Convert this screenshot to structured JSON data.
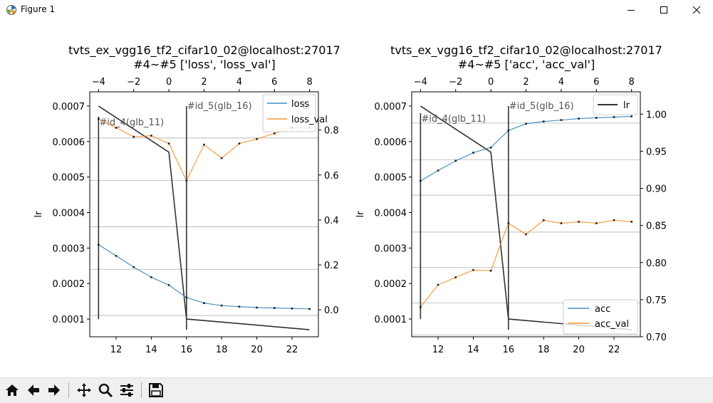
{
  "window": {
    "title": "Figure 1",
    "icons": [
      "matplotlib-icon",
      "minimize-icon",
      "maximize-icon",
      "close-icon"
    ]
  },
  "toolbar": {
    "buttons": [
      "home-icon",
      "back-icon",
      "forward-icon",
      "pan-icon",
      "zoom-icon",
      "configure-icon",
      "save-icon"
    ]
  },
  "colors": {
    "series1": "#1f77b4",
    "series2": "#ff7f0e",
    "lr": "#000000",
    "grid": "#b0b0b0"
  },
  "chart_data": [
    {
      "type": "line",
      "title": "tvts_ex_vgg16_tf2_cifar10_02@localhost:27017",
      "subtitle": "#4~#5 ['loss', 'loss_val']",
      "xlabel": "",
      "ylabel": "lr",
      "xlim": [
        10.5,
        23.5
      ],
      "ylim_left": [
        5e-05,
        0.00074
      ],
      "ylim_right": [
        -0.12,
        0.97
      ],
      "xlim_top": [
        -4.5,
        8.5
      ],
      "x_ticks": [
        12,
        14,
        16,
        18,
        20,
        22
      ],
      "x_tick_labels": [
        "12",
        "14",
        "16",
        "18",
        "20",
        "22"
      ],
      "top_ticks": [
        -4,
        -2,
        0,
        2,
        4,
        6,
        8
      ],
      "top_tick_labels": [
        "−4",
        "−2",
        "0",
        "2",
        "4",
        "6",
        "8"
      ],
      "left_ticks": [
        0.0001,
        0.0002,
        0.0003,
        0.0004,
        0.0005,
        0.0006,
        0.0007
      ],
      "left_tick_labels": [
        "0.0001",
        "0.0002",
        "0.0003",
        "0.0004",
        "0.0005",
        "0.0006",
        "0.0007"
      ],
      "right_ticks": [
        0.0,
        0.2,
        0.4,
        0.6,
        0.8
      ],
      "right_tick_labels": [
        "0.0",
        "0.2",
        "0.4",
        "0.6",
        "0.8"
      ],
      "grid_y": [
        0.00011,
        0.00024,
        0.00036,
        0.00049,
        0.00061
      ],
      "lr_series": {
        "name": "lr",
        "x": [
          11,
          15,
          16,
          23
        ],
        "y": [
          0.0007,
          0.00057,
          0.0001,
          7e-05
        ]
      },
      "series": [
        {
          "name": "loss",
          "color": "#1f77b4",
          "x": [
            11,
            12,
            13,
            14,
            15,
            16,
            17,
            18,
            19,
            20,
            21,
            22,
            23
          ],
          "y": [
            0.29,
            0.24,
            0.19,
            0.145,
            0.11,
            0.055,
            0.03,
            0.019,
            0.014,
            0.01,
            0.008,
            0.006,
            0.004
          ]
        },
        {
          "name": "loss_val",
          "color": "#ff7f0e",
          "x": [
            11,
            12,
            13,
            14,
            15,
            16,
            17,
            18,
            19,
            20,
            21,
            22,
            23
          ],
          "y": [
            0.85,
            0.81,
            0.77,
            0.775,
            0.74,
            0.575,
            0.735,
            0.675,
            0.74,
            0.76,
            0.785,
            0.81,
            0.81
          ]
        }
      ],
      "vlines": [
        {
          "x": 11,
          "y0": 0.0001,
          "y1": 0.00067,
          "label": "#id_4(glb_11)"
        },
        {
          "x": 16,
          "y0": 7e-05,
          "y1": 0.0007,
          "label": "#id_5(glb_16)"
        }
      ],
      "legend_left": {
        "position": "top-right",
        "entries": [
          "loss",
          "loss_val"
        ]
      },
      "legend_right": {
        "position": "top-right",
        "entries": [
          "lr"
        ]
      }
    },
    {
      "type": "line",
      "title": "tvts_ex_vgg16_tf2_cifar10_02@localhost:27017",
      "subtitle": "#4~#5 ['acc', 'acc_val']",
      "xlabel": "",
      "ylabel": "lr",
      "xlim": [
        10.5,
        23.5
      ],
      "ylim_left": [
        5e-05,
        0.00074
      ],
      "ylim_right": [
        0.7,
        1.03
      ],
      "xlim_top": [
        -4.5,
        8.5
      ],
      "x_ticks": [
        12,
        14,
        16,
        18,
        20,
        22
      ],
      "x_tick_labels": [
        "12",
        "14",
        "16",
        "18",
        "20",
        "22"
      ],
      "top_ticks": [
        -4,
        -2,
        0,
        2,
        4,
        6,
        8
      ],
      "top_tick_labels": [
        "−4",
        "−2",
        "0",
        "2",
        "4",
        "6",
        "8"
      ],
      "left_ticks": [
        0.0001,
        0.0002,
        0.0003,
        0.0004,
        0.0005,
        0.0006,
        0.0007
      ],
      "left_tick_labels": [
        "0.0001",
        "0.0002",
        "0.0003",
        "0.0004",
        "0.0005",
        "0.0006",
        "0.0007"
      ],
      "right_ticks": [
        0.7,
        0.75,
        0.8,
        0.85,
        0.9,
        0.95,
        1.0
      ],
      "right_tick_labels": [
        "0.70",
        "0.75",
        "0.80",
        "0.85",
        "0.90",
        "0.95",
        "1.00"
      ],
      "grid_y": [
        5.5e-05,
        0.000145,
        0.000245,
        0.000345,
        0.000449,
        0.000549,
        0.000652
      ],
      "lr_series": {
        "name": "lr",
        "x": [
          11,
          15,
          16,
          23
        ],
        "y": [
          0.0007,
          0.00057,
          0.0001,
          7e-05
        ]
      },
      "series": [
        {
          "name": "acc",
          "color": "#1f77b4",
          "x": [
            11,
            12,
            13,
            14,
            15,
            16,
            17,
            18,
            19,
            20,
            21,
            22,
            23
          ],
          "y": [
            0.91,
            0.924,
            0.937,
            0.948,
            0.955,
            0.978,
            0.987,
            0.99,
            0.992,
            0.994,
            0.995,
            0.996,
            0.997
          ]
        },
        {
          "name": "acc_val",
          "color": "#ff7f0e",
          "x": [
            11,
            12,
            13,
            14,
            15,
            16,
            17,
            18,
            19,
            20,
            21,
            22,
            23
          ],
          "y": [
            0.74,
            0.77,
            0.78,
            0.79,
            0.789,
            0.853,
            0.838,
            0.857,
            0.853,
            0.855,
            0.853,
            0.857,
            0.855
          ]
        }
      ],
      "vlines": [
        {
          "x": 11,
          "y0": 0.0001,
          "y1": 0.00068,
          "label": "#id_4(glb_11)"
        },
        {
          "x": 16,
          "y0": 7e-05,
          "y1": 0.0007,
          "label": "#id_5(glb_16)"
        }
      ],
      "legend_left": {
        "position": "bottom-right",
        "entries": [
          "acc",
          "acc_val"
        ]
      },
      "legend_right": {
        "position": "top-right",
        "entries": [
          "lr"
        ]
      }
    }
  ]
}
